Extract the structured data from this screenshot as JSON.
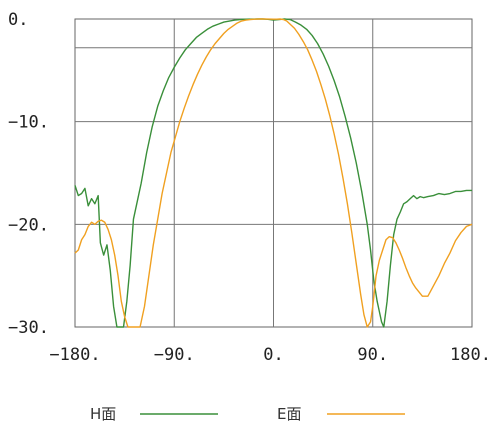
{
  "chart_data": {
    "type": "line",
    "title": "",
    "xlabel": "",
    "ylabel": "",
    "xlim": [
      -180,
      180
    ],
    "ylim": [
      -30,
      0
    ],
    "grid": true,
    "legend_position": "bottom",
    "x_ticks": [
      -180,
      -90,
      0,
      90,
      180
    ],
    "x_tick_labels": [
      "−180.",
      "−90.",
      "0.",
      "90.",
      "180."
    ],
    "y_ticks": [
      0,
      -10,
      -20,
      -30
    ],
    "y_tick_labels": [
      "0.",
      "−10.",
      "−20.",
      "−30."
    ],
    "y_extra_gridlines": [
      -2.8
    ],
    "series": [
      {
        "name": "H面",
        "color": "#3a8f3a",
        "points": [
          [
            -180,
            -16.2
          ],
          [
            -177,
            -17.2
          ],
          [
            -174,
            -17.0
          ],
          [
            -171,
            -16.5
          ],
          [
            -168,
            -18.2
          ],
          [
            -165,
            -17.5
          ],
          [
            -162,
            -18.0
          ],
          [
            -159,
            -17.2
          ],
          [
            -157,
            -21.8
          ],
          [
            -154,
            -23.0
          ],
          [
            -151,
            -22.0
          ],
          [
            -148,
            -24.5
          ],
          [
            -145,
            -28.0
          ],
          [
            -142,
            -30.0
          ],
          [
            -140,
            -30.0
          ],
          [
            -136,
            -30.0
          ],
          [
            -133,
            -27.5
          ],
          [
            -130,
            -24.0
          ],
          [
            -127,
            -19.5
          ],
          [
            -124,
            -18.0
          ],
          [
            -120,
            -16.0
          ],
          [
            -115,
            -13.0
          ],
          [
            -110,
            -10.5
          ],
          [
            -105,
            -8.5
          ],
          [
            -100,
            -7.0
          ],
          [
            -95,
            -5.7
          ],
          [
            -90,
            -4.7
          ],
          [
            -85,
            -3.8
          ],
          [
            -80,
            -3.0
          ],
          [
            -75,
            -2.4
          ],
          [
            -70,
            -1.8
          ],
          [
            -65,
            -1.4
          ],
          [
            -60,
            -1.0
          ],
          [
            -55,
            -0.7
          ],
          [
            -50,
            -0.5
          ],
          [
            -45,
            -0.3
          ],
          [
            -40,
            -0.2
          ],
          [
            -35,
            -0.1
          ],
          [
            -30,
            -0.05
          ],
          [
            -25,
            -0.02
          ],
          [
            -20,
            -0.01
          ],
          [
            -15,
            0.0
          ],
          [
            -10,
            0.0
          ],
          [
            -5,
            -0.03
          ],
          [
            0,
            -0.1
          ],
          [
            5,
            -0.05
          ],
          [
            10,
            0.0
          ],
          [
            15,
            -0.05
          ],
          [
            20,
            -0.3
          ],
          [
            25,
            -0.6
          ],
          [
            30,
            -1.0
          ],
          [
            35,
            -1.6
          ],
          [
            40,
            -2.4
          ],
          [
            45,
            -3.4
          ],
          [
            50,
            -4.6
          ],
          [
            55,
            -6.0
          ],
          [
            60,
            -7.6
          ],
          [
            65,
            -9.5
          ],
          [
            70,
            -11.6
          ],
          [
            75,
            -14.0
          ],
          [
            80,
            -16.8
          ],
          [
            85,
            -20.0
          ],
          [
            88,
            -22.5
          ],
          [
            91,
            -25.5
          ],
          [
            94,
            -27.5
          ],
          [
            96,
            -28.5
          ],
          [
            98,
            -29.5
          ],
          [
            100,
            -30.0
          ],
          [
            103,
            -27.5
          ],
          [
            106,
            -24.0
          ],
          [
            109,
            -21.0
          ],
          [
            112,
            -19.5
          ],
          [
            115,
            -18.8
          ],
          [
            118,
            -18.0
          ],
          [
            121,
            -17.8
          ],
          [
            124,
            -17.5
          ],
          [
            127,
            -17.2
          ],
          [
            130,
            -17.5
          ],
          [
            133,
            -17.3
          ],
          [
            136,
            -17.4
          ],
          [
            140,
            -17.3
          ],
          [
            145,
            -17.2
          ],
          [
            150,
            -17.0
          ],
          [
            155,
            -17.1
          ],
          [
            160,
            -17.0
          ],
          [
            165,
            -16.8
          ],
          [
            170,
            -16.8
          ],
          [
            175,
            -16.7
          ],
          [
            180,
            -16.7
          ]
        ]
      },
      {
        "name": "E面",
        "color": "#f0a020",
        "points": [
          [
            -180,
            -22.8
          ],
          [
            -177,
            -22.5
          ],
          [
            -174,
            -21.5
          ],
          [
            -171,
            -21.0
          ],
          [
            -168,
            -20.2
          ],
          [
            -165,
            -19.8
          ],
          [
            -162,
            -20.0
          ],
          [
            -159,
            -19.7
          ],
          [
            -156,
            -19.6
          ],
          [
            -153,
            -19.8
          ],
          [
            -150,
            -20.5
          ],
          [
            -147,
            -21.5
          ],
          [
            -144,
            -23.0
          ],
          [
            -141,
            -25.0
          ],
          [
            -138,
            -27.5
          ],
          [
            -135,
            -29.0
          ],
          [
            -132,
            -30.0
          ],
          [
            -129,
            -30.0
          ],
          [
            -125,
            -30.0
          ],
          [
            -121,
            -30.0
          ],
          [
            -117,
            -28.0
          ],
          [
            -113,
            -25.0
          ],
          [
            -109,
            -22.0
          ],
          [
            -105,
            -19.5
          ],
          [
            -101,
            -17.0
          ],
          [
            -97,
            -15.0
          ],
          [
            -93,
            -13.0
          ],
          [
            -89,
            -11.5
          ],
          [
            -85,
            -10.0
          ],
          [
            -81,
            -8.7
          ],
          [
            -77,
            -7.5
          ],
          [
            -73,
            -6.4
          ],
          [
            -69,
            -5.4
          ],
          [
            -65,
            -4.5
          ],
          [
            -61,
            -3.7
          ],
          [
            -57,
            -3.0
          ],
          [
            -53,
            -2.4
          ],
          [
            -49,
            -1.9
          ],
          [
            -45,
            -1.4
          ],
          [
            -41,
            -1.0
          ],
          [
            -37,
            -0.7
          ],
          [
            -33,
            -0.4
          ],
          [
            -29,
            -0.2
          ],
          [
            -25,
            -0.1
          ],
          [
            -21,
            -0.05
          ],
          [
            -17,
            -0.02
          ],
          [
            -13,
            0.0
          ],
          [
            -9,
            0.0
          ],
          [
            -5,
            -0.01
          ],
          [
            0,
            -0.02
          ],
          [
            3,
            -0.02
          ],
          [
            6,
            0.0
          ],
          [
            9,
            -0.05
          ],
          [
            12,
            -0.2
          ],
          [
            15,
            -0.5
          ],
          [
            19,
            -0.9
          ],
          [
            23,
            -1.5
          ],
          [
            27,
            -2.2
          ],
          [
            31,
            -3.0
          ],
          [
            35,
            -4.0
          ],
          [
            39,
            -5.1
          ],
          [
            43,
            -6.4
          ],
          [
            47,
            -7.8
          ],
          [
            51,
            -9.4
          ],
          [
            55,
            -11.2
          ],
          [
            59,
            -13.2
          ],
          [
            63,
            -15.5
          ],
          [
            67,
            -18.0
          ],
          [
            71,
            -20.8
          ],
          [
            75,
            -23.8
          ],
          [
            79,
            -26.8
          ],
          [
            82,
            -28.8
          ],
          [
            85,
            -30.0
          ],
          [
            88,
            -29.5
          ],
          [
            90,
            -28.0
          ],
          [
            93,
            -25.0
          ],
          [
            96,
            -23.5
          ],
          [
            99,
            -22.5
          ],
          [
            102,
            -21.5
          ],
          [
            105,
            -21.2
          ],
          [
            108,
            -21.3
          ],
          [
            111,
            -21.8
          ],
          [
            114,
            -22.5
          ],
          [
            117,
            -23.3
          ],
          [
            120,
            -24.2
          ],
          [
            123,
            -25.0
          ],
          [
            126,
            -25.7
          ],
          [
            129,
            -26.2
          ],
          [
            132,
            -26.6
          ],
          [
            135,
            -27.0
          ],
          [
            140,
            -27.0
          ],
          [
            145,
            -26.0
          ],
          [
            150,
            -25.0
          ],
          [
            155,
            -23.8
          ],
          [
            160,
            -22.8
          ],
          [
            165,
            -21.6
          ],
          [
            170,
            -20.8
          ],
          [
            175,
            -20.2
          ],
          [
            180,
            -20.0
          ]
        ]
      }
    ]
  }
}
